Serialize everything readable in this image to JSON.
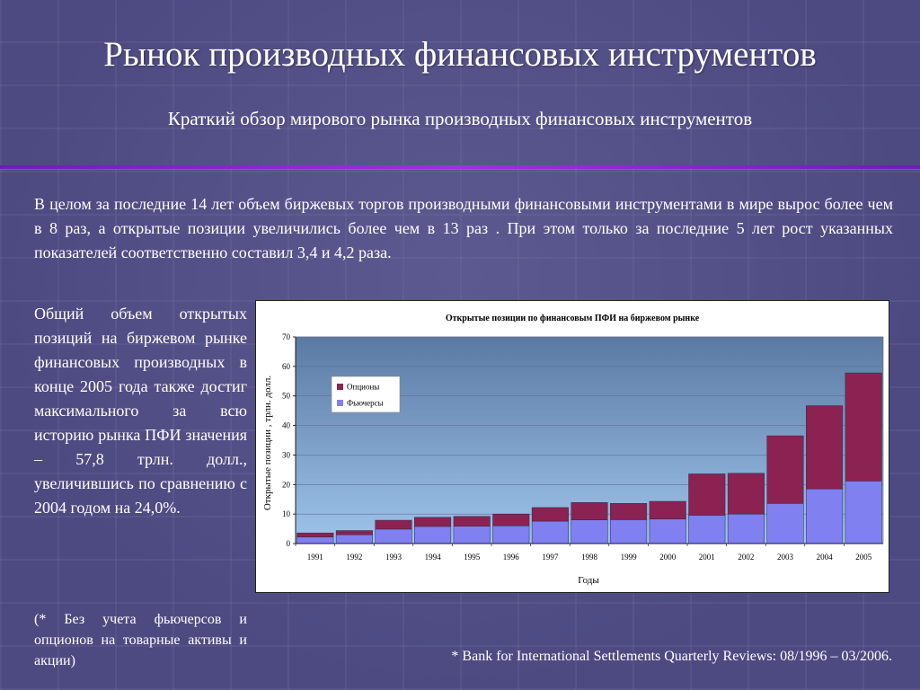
{
  "slide": {
    "title": "Рынок производных финансовых инструментов",
    "subtitle": "Краткий обзор мирового рынка производных финансовых инструментов",
    "intro": "В целом за последние 14 лет объем биржевых торгов производными финансовыми инструментами в мире вырос более чем в 8 раз, а открытые позиции увеличились более чем в 13 раз . При этом только за последние 5 лет рост указанных показателей соответственно составил 3,4 и 4,2 раза.",
    "side_text": "Общий объем открытых позиций на биржевом рынке финансовых производных в конце 2005 года также достиг максимального за всю историю рынка ПФИ значения – 57,8 трлн. долл., увеличившись по сравнению с 2004 годом на 24,0%.",
    "footnote": "(* Без учета фьючерсов и опционов на товарные активы и акции)",
    "source": "* Bank for International Settlements Quarterly Reviews: 08/1996 – 03/2006."
  },
  "colors": {
    "futures": "#8080f0",
    "options": "#8b2252",
    "plot_top": "#5b7aa3",
    "plot_bottom": "#9ec4ea"
  },
  "chart_data": {
    "type": "bar",
    "stacked": true,
    "title": "Открытые позиции по финансовым ПФИ на биржевом рынке",
    "xlabel": "Годы",
    "ylabel": "Открытые позиции , трлн. долл.",
    "ylim": [
      0,
      70
    ],
    "yticks": [
      0,
      10,
      20,
      30,
      40,
      50,
      60,
      70
    ],
    "grid": true,
    "legend_position": "upper-left",
    "categories": [
      "1991",
      "1992",
      "1993",
      "1994",
      "1995",
      "1996",
      "1997",
      "1998",
      "1999",
      "2000",
      "2001",
      "2002",
      "2003",
      "2004",
      "2005"
    ],
    "series": [
      {
        "name": "Фьючерсы",
        "values": [
          2.2,
          3.0,
          4.9,
          5.8,
          5.9,
          6.0,
          7.6,
          8.0,
          8.1,
          8.3,
          9.6,
          10.0,
          13.6,
          18.5,
          21.2
        ]
      },
      {
        "name": "Опционы",
        "values": [
          1.4,
          1.4,
          3.0,
          3.1,
          3.3,
          4.0,
          4.6,
          5.9,
          5.5,
          6.0,
          14.0,
          13.8,
          22.9,
          28.2,
          36.6
        ]
      }
    ]
  }
}
